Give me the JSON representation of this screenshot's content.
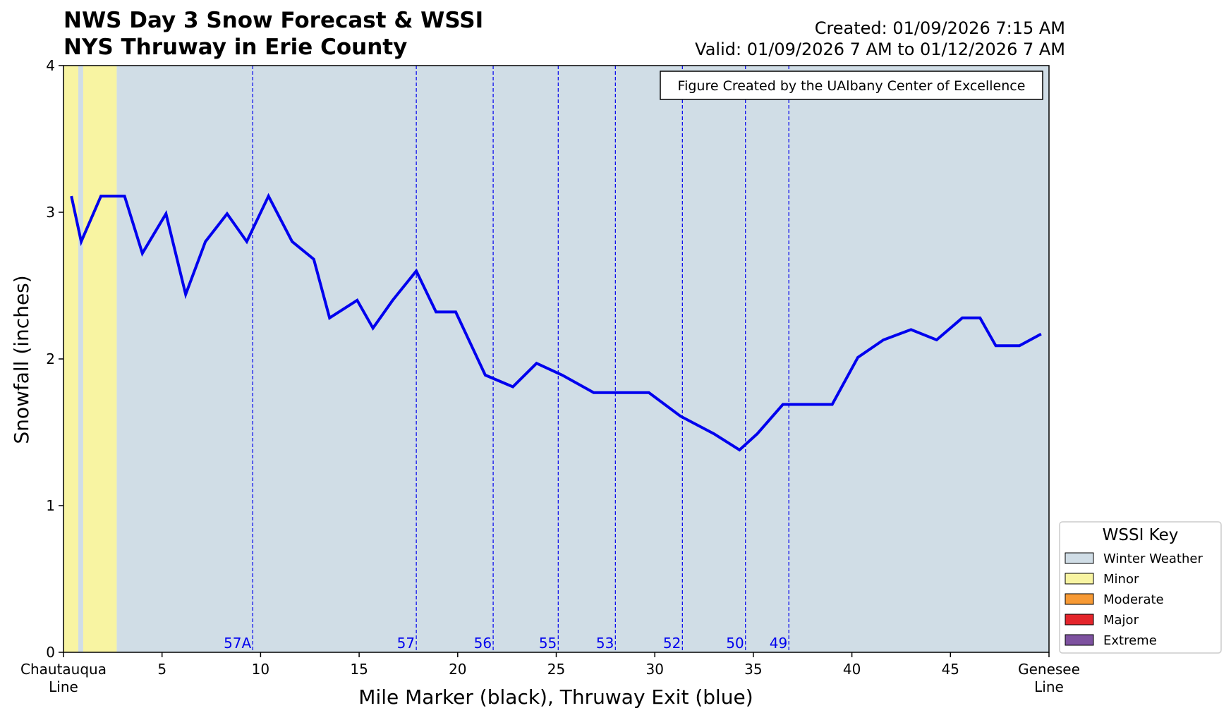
{
  "chart_data": {
    "type": "line",
    "title": [
      "NWS Day 3 Snow Forecast & WSSI",
      "NYS Thruway in Erie County"
    ],
    "created": "Created: 01/09/2026 7:15 AM",
    "valid": "Valid: 01/09/2026 7 AM to 01/12/2026 7 AM",
    "credit": "Figure Created by the UAlbany Center of Excellence",
    "xlabel": "Mile Marker (black), Thruway Exit (blue)",
    "ylabel": "Snowfall (inches)",
    "xlim": [
      0,
      50
    ],
    "ylim": [
      0,
      4
    ],
    "yticks": [
      0,
      1,
      2,
      3,
      4
    ],
    "xticks": [
      {
        "value": 0,
        "label": "Chautauqua\nLine"
      },
      {
        "value": 5,
        "label": "5"
      },
      {
        "value": 10,
        "label": "10"
      },
      {
        "value": 15,
        "label": "15"
      },
      {
        "value": 20,
        "label": "20"
      },
      {
        "value": 25,
        "label": "25"
      },
      {
        "value": 30,
        "label": "30"
      },
      {
        "value": 35,
        "label": "35"
      },
      {
        "value": 40,
        "label": "40"
      },
      {
        "value": 45,
        "label": "45"
      },
      {
        "value": 50,
        "label": "Genesee\nLine"
      }
    ],
    "series": [
      {
        "name": "Snowfall",
        "color": "#0000ee",
        "x": [
          0.4,
          0.9,
          1.9,
          3.1,
          4.0,
          5.2,
          6.2,
          7.2,
          8.3,
          9.3,
          10.4,
          11.6,
          12.7,
          13.5,
          14.9,
          15.7,
          16.7,
          17.9,
          18.9,
          19.9,
          21.4,
          22.8,
          24.0,
          25.3,
          26.9,
          27.8,
          29.7,
          31.3,
          33.0,
          34.3,
          35.2,
          36.5,
          37.4,
          39.0,
          40.3,
          41.6,
          43.0,
          44.3,
          45.6,
          46.5,
          47.3,
          48.5,
          49.6
        ],
        "y": [
          3.11,
          2.8,
          3.11,
          3.11,
          2.72,
          2.99,
          2.44,
          2.8,
          2.99,
          2.8,
          3.11,
          2.8,
          2.68,
          2.28,
          2.4,
          2.21,
          2.4,
          2.6,
          2.32,
          2.32,
          1.89,
          1.81,
          1.97,
          1.89,
          1.77,
          1.77,
          1.77,
          1.61,
          1.49,
          1.38,
          1.49,
          1.69,
          1.69,
          1.69,
          2.01,
          2.13,
          2.2,
          2.13,
          2.28,
          2.28,
          2.09,
          2.09,
          2.17
        ]
      }
    ],
    "exits": [
      {
        "x": 9.6,
        "label": "57A"
      },
      {
        "x": 17.9,
        "label": "57"
      },
      {
        "x": 21.8,
        "label": "56"
      },
      {
        "x": 25.1,
        "label": "55"
      },
      {
        "x": 28.0,
        "label": "53"
      },
      {
        "x": 31.4,
        "label": "52"
      },
      {
        "x": 34.6,
        "label": "50"
      },
      {
        "x": 36.8,
        "label": "49"
      }
    ],
    "wssi_bands": [
      {
        "from": 0.0,
        "to": 0.75,
        "level": "Minor"
      },
      {
        "from": 0.75,
        "to": 1.0,
        "level": "Winter Weather"
      },
      {
        "from": 1.0,
        "to": 2.7,
        "level": "Minor"
      },
      {
        "from": 2.7,
        "to": 50.0,
        "level": "Winter Weather"
      }
    ],
    "legend": {
      "title": "WSSI Key",
      "position": "outside-right-bottom",
      "items": [
        {
          "label": "Winter Weather",
          "color": "#d0dde6"
        },
        {
          "label": "Minor",
          "color": "#f8f4a2"
        },
        {
          "label": "Moderate",
          "color": "#f79a35"
        },
        {
          "label": "Major",
          "color": "#e4252b"
        },
        {
          "label": "Extreme",
          "color": "#7e52a0"
        }
      ]
    }
  }
}
